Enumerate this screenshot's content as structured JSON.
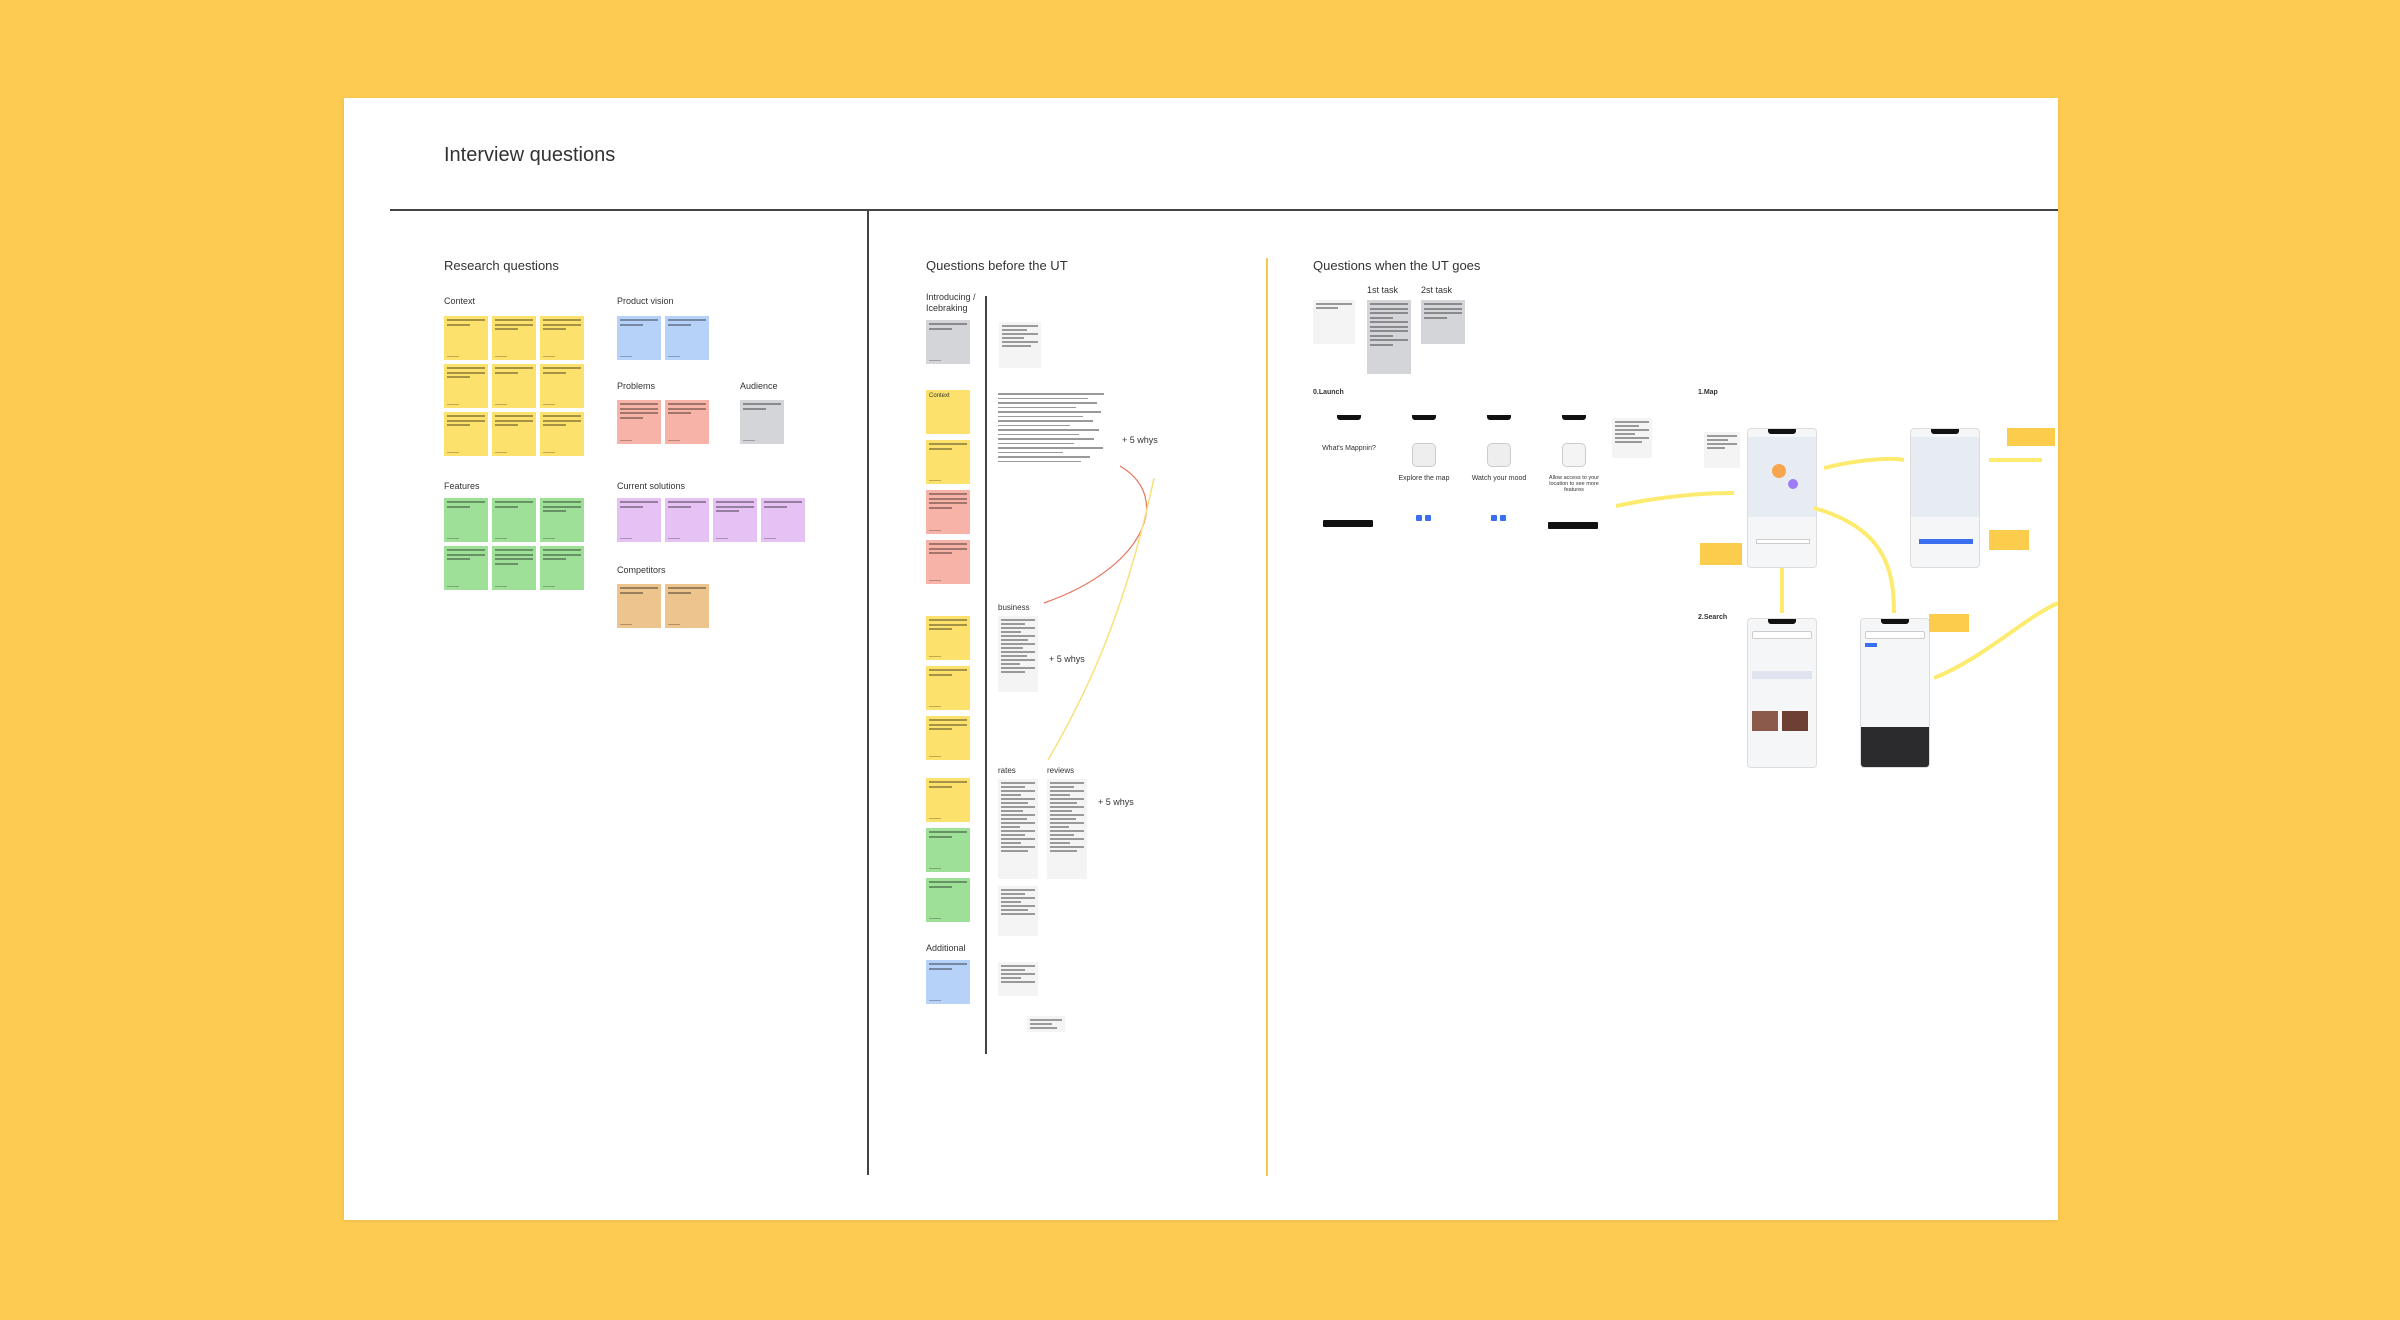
{
  "board": {
    "title": "Interview questions"
  },
  "research": {
    "title": "Research questions",
    "groups": {
      "context": "Context",
      "product_vision": "Product vision",
      "problems": "Problems",
      "audience": "Audience",
      "features": "Features",
      "current_solutions": "Current solutions",
      "competitors": "Competitors"
    }
  },
  "before_ut": {
    "title": "Questions before the UT",
    "labels": {
      "introducing": "Introducing / Icebraking",
      "context": "Context",
      "business": "business",
      "rates": "rates",
      "reviews": "reviews",
      "additional": "Additional"
    },
    "whys": [
      "+ 5 whys",
      "+ 5 whys",
      "+ 5 whys"
    ]
  },
  "when_ut": {
    "title": "Questions when the UT goes",
    "tasks": [
      "1st task",
      "2st task"
    ],
    "sections": {
      "launch": "0.Launch",
      "map": "1.Map",
      "search": "2.Search"
    },
    "launch_screens": [
      {
        "title": "What's Mappnin?"
      },
      {
        "title": "Explore the map"
      },
      {
        "title": "Watch your mood"
      },
      {
        "title": "Allow access to your location to see more features"
      }
    ]
  },
  "colors": {
    "background": "#FDCB52",
    "board": "#FFFFFF",
    "sticky_yellow": "#FCE26C",
    "sticky_blue": "#B7D2F9",
    "sticky_red": "#F7B3A7",
    "sticky_gray": "#D4D5D8",
    "sticky_green": "#9FE099",
    "sticky_purple": "#E6C2F4",
    "sticky_orange": "#EDC48E",
    "arrow_yellow": "#FCEB6E",
    "arrow_red": "#E8735A"
  }
}
